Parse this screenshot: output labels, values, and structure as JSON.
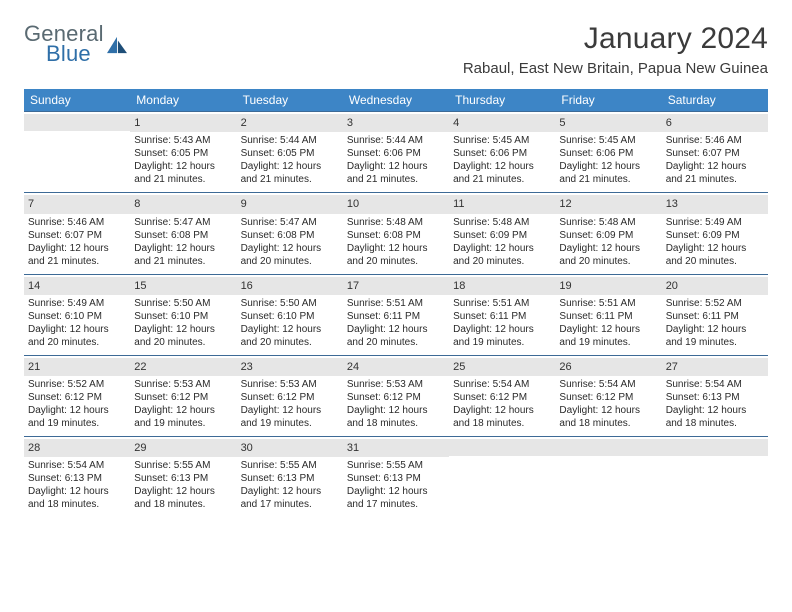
{
  "logo": {
    "word1": "General",
    "word2": "Blue"
  },
  "title": "January 2024",
  "location": "Rabaul, East New Britain, Papua New Guinea",
  "header_color": "#3d85c6",
  "divider_color": "#3d6a96",
  "daynum_bg": "#e6e6e6",
  "text_color": "#2a2a2a",
  "weekdays": [
    "Sunday",
    "Monday",
    "Tuesday",
    "Wednesday",
    "Thursday",
    "Friday",
    "Saturday"
  ],
  "weeks": [
    [
      {
        "n": "",
        "lines": []
      },
      {
        "n": "1",
        "lines": [
          "Sunrise: 5:43 AM",
          "Sunset: 6:05 PM",
          "Daylight: 12 hours and 21 minutes."
        ]
      },
      {
        "n": "2",
        "lines": [
          "Sunrise: 5:44 AM",
          "Sunset: 6:05 PM",
          "Daylight: 12 hours and 21 minutes."
        ]
      },
      {
        "n": "3",
        "lines": [
          "Sunrise: 5:44 AM",
          "Sunset: 6:06 PM",
          "Daylight: 12 hours and 21 minutes."
        ]
      },
      {
        "n": "4",
        "lines": [
          "Sunrise: 5:45 AM",
          "Sunset: 6:06 PM",
          "Daylight: 12 hours and 21 minutes."
        ]
      },
      {
        "n": "5",
        "lines": [
          "Sunrise: 5:45 AM",
          "Sunset: 6:06 PM",
          "Daylight: 12 hours and 21 minutes."
        ]
      },
      {
        "n": "6",
        "lines": [
          "Sunrise: 5:46 AM",
          "Sunset: 6:07 PM",
          "Daylight: 12 hours and 21 minutes."
        ]
      }
    ],
    [
      {
        "n": "7",
        "lines": [
          "Sunrise: 5:46 AM",
          "Sunset: 6:07 PM",
          "Daylight: 12 hours and 21 minutes."
        ]
      },
      {
        "n": "8",
        "lines": [
          "Sunrise: 5:47 AM",
          "Sunset: 6:08 PM",
          "Daylight: 12 hours and 21 minutes."
        ]
      },
      {
        "n": "9",
        "lines": [
          "Sunrise: 5:47 AM",
          "Sunset: 6:08 PM",
          "Daylight: 12 hours and 20 minutes."
        ]
      },
      {
        "n": "10",
        "lines": [
          "Sunrise: 5:48 AM",
          "Sunset: 6:08 PM",
          "Daylight: 12 hours and 20 minutes."
        ]
      },
      {
        "n": "11",
        "lines": [
          "Sunrise: 5:48 AM",
          "Sunset: 6:09 PM",
          "Daylight: 12 hours and 20 minutes."
        ]
      },
      {
        "n": "12",
        "lines": [
          "Sunrise: 5:48 AM",
          "Sunset: 6:09 PM",
          "Daylight: 12 hours and 20 minutes."
        ]
      },
      {
        "n": "13",
        "lines": [
          "Sunrise: 5:49 AM",
          "Sunset: 6:09 PM",
          "Daylight: 12 hours and 20 minutes."
        ]
      }
    ],
    [
      {
        "n": "14",
        "lines": [
          "Sunrise: 5:49 AM",
          "Sunset: 6:10 PM",
          "Daylight: 12 hours and 20 minutes."
        ]
      },
      {
        "n": "15",
        "lines": [
          "Sunrise: 5:50 AM",
          "Sunset: 6:10 PM",
          "Daylight: 12 hours and 20 minutes."
        ]
      },
      {
        "n": "16",
        "lines": [
          "Sunrise: 5:50 AM",
          "Sunset: 6:10 PM",
          "Daylight: 12 hours and 20 minutes."
        ]
      },
      {
        "n": "17",
        "lines": [
          "Sunrise: 5:51 AM",
          "Sunset: 6:11 PM",
          "Daylight: 12 hours and 20 minutes."
        ]
      },
      {
        "n": "18",
        "lines": [
          "Sunrise: 5:51 AM",
          "Sunset: 6:11 PM",
          "Daylight: 12 hours and 19 minutes."
        ]
      },
      {
        "n": "19",
        "lines": [
          "Sunrise: 5:51 AM",
          "Sunset: 6:11 PM",
          "Daylight: 12 hours and 19 minutes."
        ]
      },
      {
        "n": "20",
        "lines": [
          "Sunrise: 5:52 AM",
          "Sunset: 6:11 PM",
          "Daylight: 12 hours and 19 minutes."
        ]
      }
    ],
    [
      {
        "n": "21",
        "lines": [
          "Sunrise: 5:52 AM",
          "Sunset: 6:12 PM",
          "Daylight: 12 hours and 19 minutes."
        ]
      },
      {
        "n": "22",
        "lines": [
          "Sunrise: 5:53 AM",
          "Sunset: 6:12 PM",
          "Daylight: 12 hours and 19 minutes."
        ]
      },
      {
        "n": "23",
        "lines": [
          "Sunrise: 5:53 AM",
          "Sunset: 6:12 PM",
          "Daylight: 12 hours and 19 minutes."
        ]
      },
      {
        "n": "24",
        "lines": [
          "Sunrise: 5:53 AM",
          "Sunset: 6:12 PM",
          "Daylight: 12 hours and 18 minutes."
        ]
      },
      {
        "n": "25",
        "lines": [
          "Sunrise: 5:54 AM",
          "Sunset: 6:12 PM",
          "Daylight: 12 hours and 18 minutes."
        ]
      },
      {
        "n": "26",
        "lines": [
          "Sunrise: 5:54 AM",
          "Sunset: 6:12 PM",
          "Daylight: 12 hours and 18 minutes."
        ]
      },
      {
        "n": "27",
        "lines": [
          "Sunrise: 5:54 AM",
          "Sunset: 6:13 PM",
          "Daylight: 12 hours and 18 minutes."
        ]
      }
    ],
    [
      {
        "n": "28",
        "lines": [
          "Sunrise: 5:54 AM",
          "Sunset: 6:13 PM",
          "Daylight: 12 hours and 18 minutes."
        ]
      },
      {
        "n": "29",
        "lines": [
          "Sunrise: 5:55 AM",
          "Sunset: 6:13 PM",
          "Daylight: 12 hours and 18 minutes."
        ]
      },
      {
        "n": "30",
        "lines": [
          "Sunrise: 5:55 AM",
          "Sunset: 6:13 PM",
          "Daylight: 12 hours and 17 minutes."
        ]
      },
      {
        "n": "31",
        "lines": [
          "Sunrise: 5:55 AM",
          "Sunset: 6:13 PM",
          "Daylight: 12 hours and 17 minutes."
        ]
      },
      {
        "n": "",
        "lines": []
      },
      {
        "n": "",
        "lines": []
      },
      {
        "n": "",
        "lines": []
      }
    ]
  ]
}
